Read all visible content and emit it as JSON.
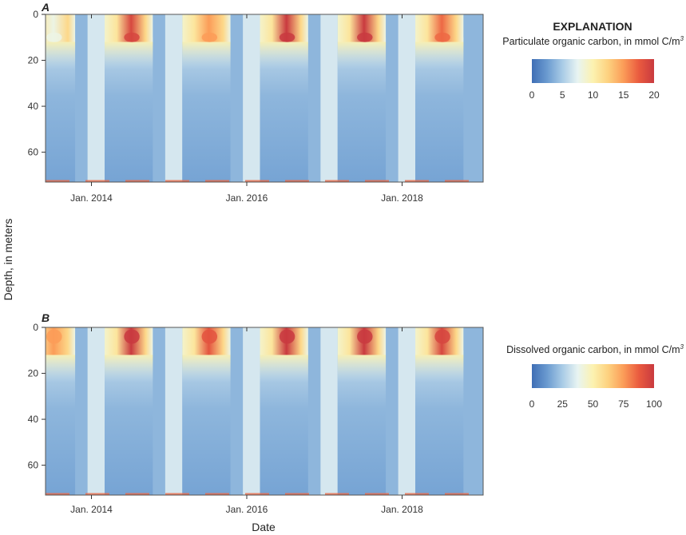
{
  "chart_data": [
    {
      "type": "heatmap",
      "panel_label": "A",
      "colorbar_title": "Particulate organic carbon, in mmol C/m",
      "colorbar_superscript": "3",
      "explanation_heading": "EXPLANATION",
      "colorbar_ticks": [
        0,
        5,
        10,
        15,
        20
      ],
      "colorbar_range": [
        0,
        20
      ],
      "colormap": [
        "#3f6eb5",
        "#6b9bd0",
        "#a9cbe6",
        "#e8f4f2",
        "#fcf2b0",
        "#fdd17f",
        "#fb9c58",
        "#ea5b3f",
        "#c93a3f"
      ],
      "x_ticks": [
        "Jan. 2014",
        "Jan. 2016",
        "Jan. 2018"
      ],
      "y_ticks": [
        0,
        20,
        40,
        60
      ],
      "ylim": [
        0,
        73
      ],
      "bloom_peaks": [
        {
          "date": "Jul. 2013",
          "max": 8
        },
        {
          "date": "Jul. 2014",
          "max": 19
        },
        {
          "date": "Jul. 2015",
          "max": 15
        },
        {
          "date": "Jul. 2016",
          "max": 20
        },
        {
          "date": "Jul. 2017",
          "max": 20
        },
        {
          "date": "Jul. 2018",
          "max": 17
        }
      ],
      "deep_winter_value": 3,
      "surface_spring_value": 10
    },
    {
      "type": "heatmap",
      "panel_label": "B",
      "colorbar_title": "Dissolved organic carbon, in mmol C/m",
      "colorbar_superscript": "3",
      "colorbar_ticks": [
        0,
        25,
        50,
        75,
        100
      ],
      "colorbar_range": [
        0,
        100
      ],
      "colormap": [
        "#3f6eb5",
        "#6b9bd0",
        "#a9cbe6",
        "#e8f4f2",
        "#fcf2b0",
        "#fdd17f",
        "#fb9c58",
        "#ea5b3f",
        "#c93a3f"
      ],
      "x_ticks": [
        "Jan. 2014",
        "Jan. 2016",
        "Jan. 2018"
      ],
      "y_ticks": [
        0,
        20,
        40,
        60
      ],
      "ylim": [
        0,
        73
      ],
      "bloom_peaks": [
        {
          "date": "Jul. 2013",
          "max": 75
        },
        {
          "date": "Jul. 2014",
          "max": 100
        },
        {
          "date": "Jul. 2015",
          "max": 90
        },
        {
          "date": "Jul. 2016",
          "max": 100
        },
        {
          "date": "Jul. 2017",
          "max": 100
        },
        {
          "date": "Jul. 2018",
          "max": 95
        }
      ],
      "deep_winter_value": 15,
      "surface_spring_value": 50
    }
  ],
  "axes": {
    "y_label": "Depth, in meters",
    "x_label": "Date"
  }
}
